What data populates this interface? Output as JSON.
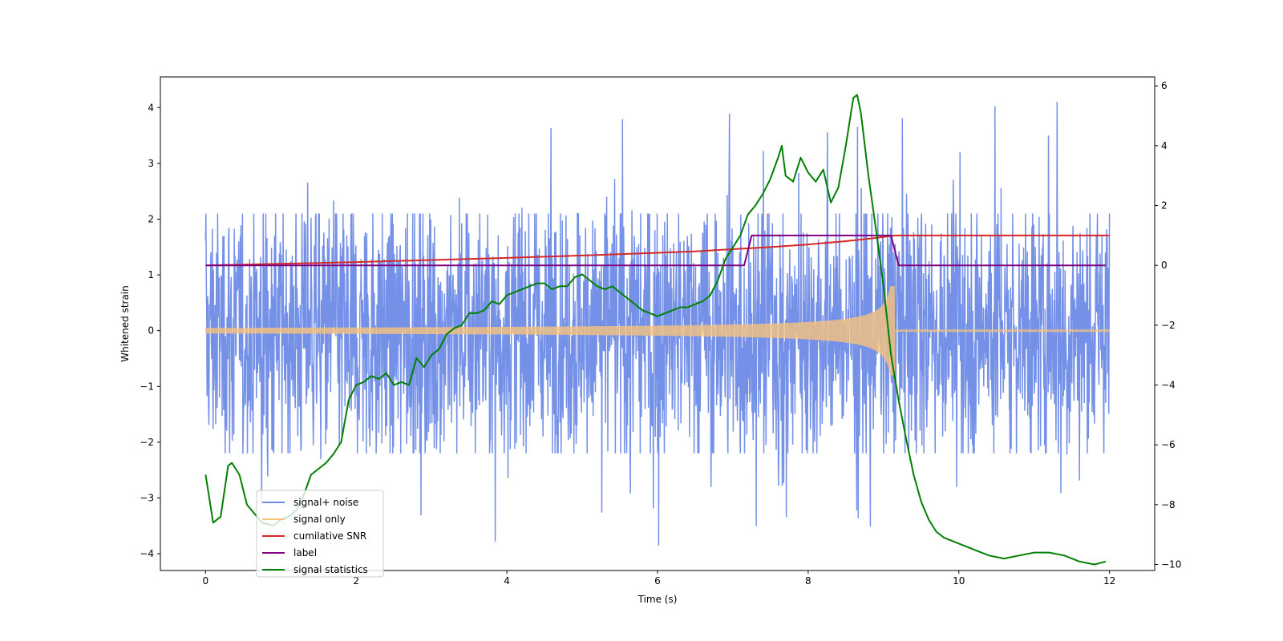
{
  "chart_data": {
    "type": "line",
    "title": "",
    "xlabel": "Time (s)",
    "ylabel": "Whitened strain",
    "y2label": "",
    "xlim": [
      -0.6,
      12.6
    ],
    "ylim": [
      -4.3,
      4.55
    ],
    "y2lim": [
      -10.2,
      6.3
    ],
    "xticks": [
      0,
      2,
      4,
      6,
      8,
      10,
      12
    ],
    "yticks": [
      -4,
      -3,
      -2,
      -1,
      0,
      1,
      2,
      3,
      4
    ],
    "y2ticks": [
      -10,
      -8,
      -6,
      -4,
      -2,
      0,
      2,
      4,
      6
    ],
    "xtick_labels": [
      "0",
      "2",
      "4",
      "6",
      "8",
      "10",
      "12"
    ],
    "ytick_labels": [
      "−4",
      "−3",
      "−2",
      "−1",
      "0",
      "1",
      "2",
      "3",
      "4"
    ],
    "y2tick_labels": [
      "−10",
      "−8",
      "−6",
      "−4",
      "−2",
      "0",
      "2",
      "4",
      "6"
    ],
    "merger_time": 9.15,
    "noise_band": {
      "low": -2.2,
      "high": 2.1,
      "max_peak": 4.17,
      "min_trough": -3.9
    },
    "series": [
      {
        "name": "signal+ noise",
        "axis": "left",
        "color": "#6d8be6",
        "style": "noise",
        "x_range": [
          0,
          12
        ]
      },
      {
        "name": "signal only",
        "axis": "left",
        "color": "#f6c27e",
        "style": "chirp",
        "x_range": [
          0,
          12
        ],
        "amp_start": 0.05,
        "amp_peak": 0.8
      },
      {
        "name": "cumilative SNR",
        "axis": "right",
        "color": "#d62728",
        "style": "line",
        "x": [
          0,
          1,
          2,
          3,
          4,
          5,
          6,
          6.5,
          7,
          7.5,
          8,
          8.5,
          8.8,
          9.0,
          9.15,
          12
        ],
        "y": [
          0,
          0.05,
          0.11,
          0.18,
          0.25,
          0.33,
          0.42,
          0.47,
          0.54,
          0.61,
          0.7,
          0.81,
          0.89,
          0.95,
          1.0,
          1.0
        ]
      },
      {
        "name": "label",
        "axis": "right",
        "color": "#800080",
        "style": "line",
        "x": [
          0,
          7.15,
          7.25,
          9.1,
          9.2,
          11.95
        ],
        "y": [
          0,
          0,
          1,
          1,
          0,
          0
        ]
      },
      {
        "name": "signal statistics",
        "axis": "right",
        "color": "#008000",
        "style": "line",
        "x": [
          0,
          0.1,
          0.2,
          0.3,
          0.35,
          0.45,
          0.55,
          0.65,
          0.75,
          0.9,
          1.0,
          1.1,
          1.2,
          1.3,
          1.4,
          1.5,
          1.6,
          1.7,
          1.8,
          1.9,
          2.0,
          2.1,
          2.2,
          2.3,
          2.4,
          2.5,
          2.6,
          2.7,
          2.8,
          2.9,
          3.0,
          3.1,
          3.2,
          3.3,
          3.4,
          3.5,
          3.6,
          3.7,
          3.8,
          3.9,
          4.0,
          4.1,
          4.2,
          4.3,
          4.4,
          4.5,
          4.6,
          4.7,
          4.8,
          4.9,
          5.0,
          5.1,
          5.2,
          5.3,
          5.4,
          5.5,
          5.6,
          5.7,
          5.8,
          5.9,
          6.0,
          6.1,
          6.2,
          6.3,
          6.4,
          6.5,
          6.6,
          6.7,
          6.8,
          6.9,
          7.0,
          7.1,
          7.2,
          7.3,
          7.4,
          7.5,
          7.6,
          7.65,
          7.7,
          7.8,
          7.9,
          8.0,
          8.1,
          8.2,
          8.3,
          8.4,
          8.5,
          8.55,
          8.6,
          8.65,
          8.7,
          8.8,
          8.9,
          9.0,
          9.1,
          9.2,
          9.3,
          9.4,
          9.5,
          9.6,
          9.7,
          9.8,
          9.9,
          10.0,
          10.2,
          10.4,
          10.6,
          10.8,
          11.0,
          11.2,
          11.4,
          11.6,
          11.8,
          11.95
        ],
        "y": [
          -7.0,
          -8.6,
          -8.4,
          -6.7,
          -6.6,
          -7.0,
          -8.0,
          -8.3,
          -8.6,
          -8.7,
          -8.5,
          -8.4,
          -8.2,
          -7.7,
          -7.0,
          -6.8,
          -6.6,
          -6.3,
          -5.9,
          -4.5,
          -4.0,
          -3.9,
          -3.7,
          -3.8,
          -3.6,
          -4.0,
          -3.9,
          -4.0,
          -3.1,
          -3.4,
          -3.0,
          -2.8,
          -2.3,
          -2.1,
          -2.0,
          -1.6,
          -1.6,
          -1.5,
          -1.2,
          -1.3,
          -1.0,
          -0.9,
          -0.8,
          -0.7,
          -0.6,
          -0.6,
          -0.8,
          -0.7,
          -0.7,
          -0.4,
          -0.3,
          -0.5,
          -0.7,
          -0.8,
          -0.7,
          -0.9,
          -1.1,
          -1.3,
          -1.5,
          -1.6,
          -1.7,
          -1.6,
          -1.5,
          -1.4,
          -1.4,
          -1.3,
          -1.2,
          -1.0,
          -0.5,
          0.2,
          0.6,
          1.0,
          1.7,
          2.0,
          2.4,
          2.9,
          3.6,
          4.0,
          3.0,
          2.8,
          3.6,
          3.1,
          2.8,
          3.2,
          2.1,
          2.6,
          4.0,
          4.8,
          5.6,
          5.7,
          5.1,
          3.0,
          1.2,
          -0.7,
          -3.0,
          -4.5,
          -5.8,
          -7.0,
          -7.9,
          -8.5,
          -8.9,
          -9.1,
          -9.2,
          -9.3,
          -9.5,
          -9.7,
          -9.8,
          -9.7,
          -9.6,
          -9.6,
          -9.7,
          -9.9,
          -10.0,
          -9.9
        ]
      }
    ]
  }
}
